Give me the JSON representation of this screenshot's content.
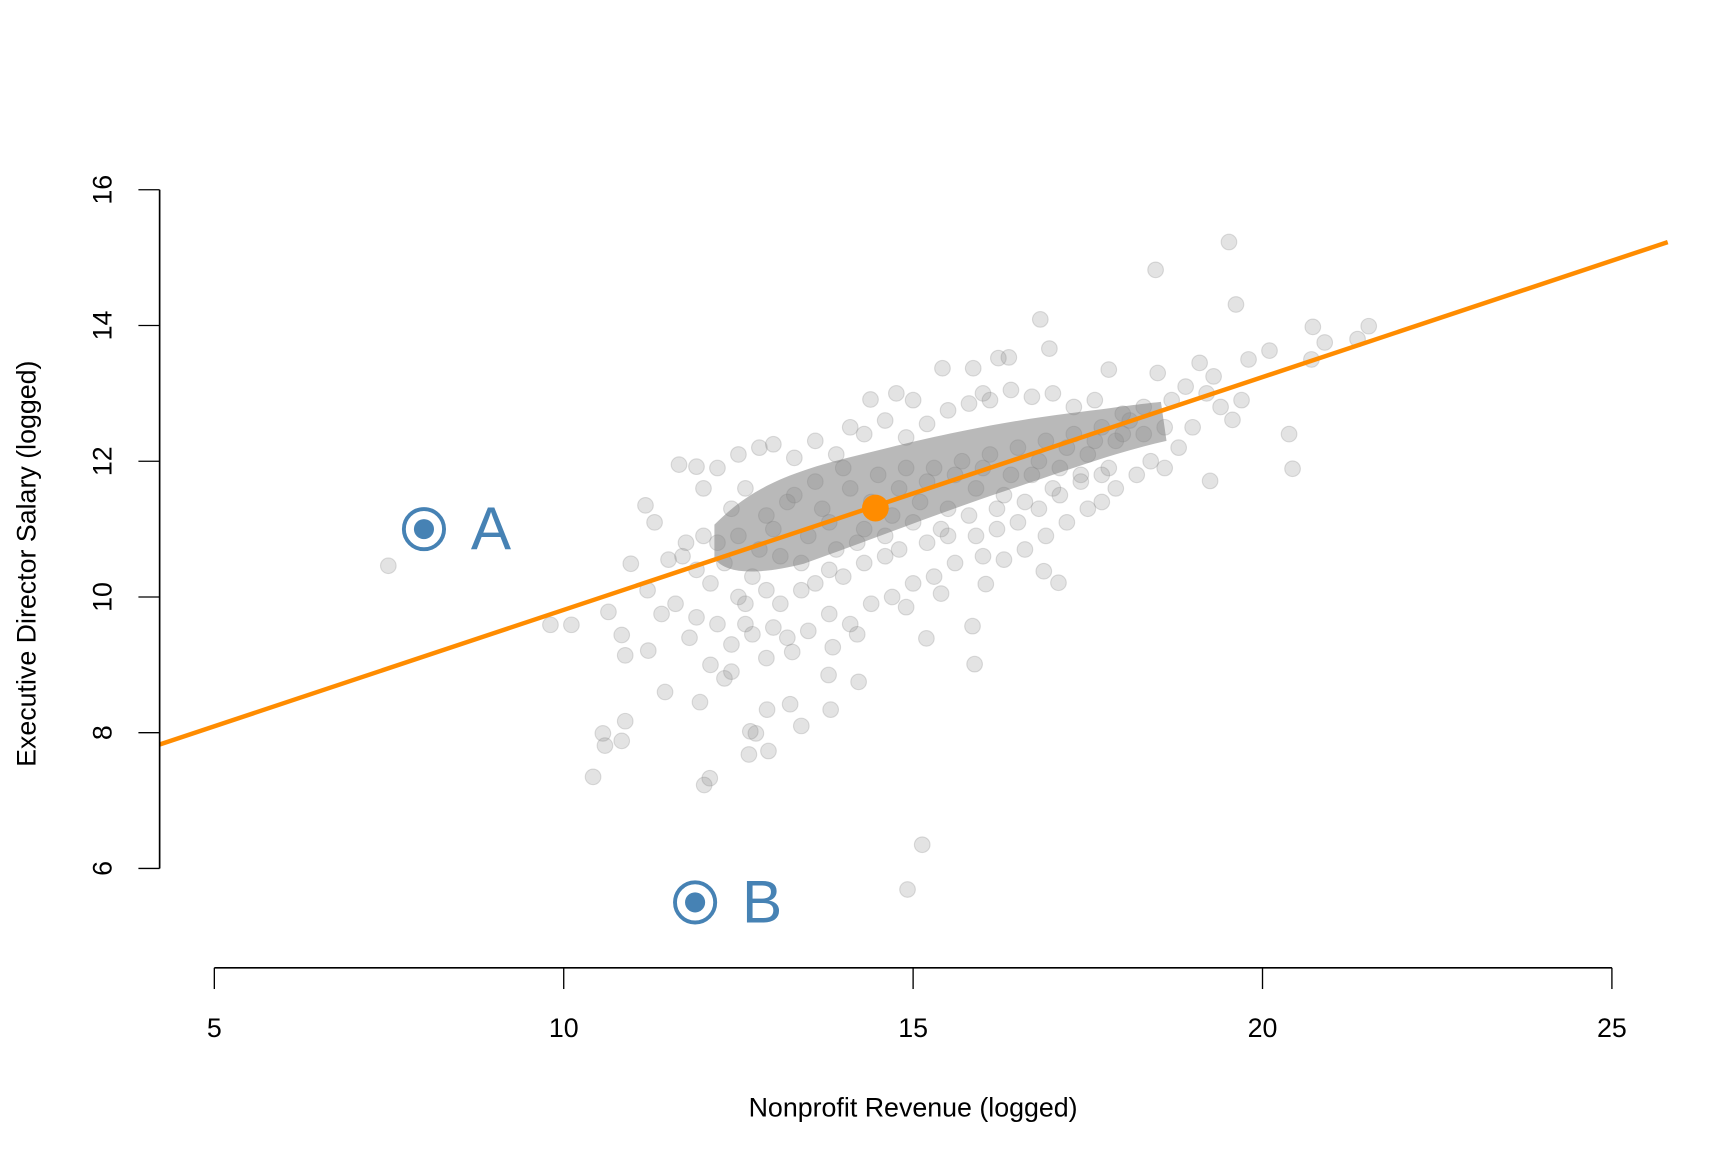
{
  "chart_data": {
    "type": "scatter",
    "title": "",
    "xlabel": "Nonprofit Revenue (logged)",
    "ylabel": "Executive Director Salary (logged)",
    "xlim": [
      5,
      25
    ],
    "ylim": [
      6,
      16
    ],
    "xticks": [
      "5",
      "10",
      "15",
      "20",
      "25"
    ],
    "yticks": [
      "6",
      "8",
      "10",
      "12",
      "14",
      "16"
    ],
    "grid": false,
    "colors": {
      "points": "#808080",
      "line": "#FF8C00",
      "highlight": "#4682B4"
    },
    "regression": {
      "intercept": 6.38,
      "slope": 0.343
    },
    "mean_point": {
      "x": 14.46,
      "y": 11.31
    },
    "highlighted": [
      {
        "label": "A",
        "x": 8.0,
        "y": 11.0
      },
      {
        "label": "B",
        "x": 11.88,
        "y": 5.5
      }
    ],
    "points": [
      [
        7.49,
        10.46
      ],
      [
        9.81,
        9.59
      ],
      [
        10.11,
        9.59
      ],
      [
        10.42,
        7.35
      ],
      [
        10.56,
        7.99
      ],
      [
        10.59,
        7.81
      ],
      [
        10.83,
        7.88
      ],
      [
        10.88,
        8.17
      ],
      [
        12.01,
        7.23
      ],
      [
        12.09,
        7.33
      ],
      [
        11.95,
        8.45
      ],
      [
        11.45,
        8.6
      ],
      [
        12.65,
        7.68
      ],
      [
        12.93,
        7.73
      ],
      [
        12.67,
        8.02
      ],
      [
        12.75,
        7.99
      ],
      [
        12.91,
        8.34
      ],
      [
        13.24,
        8.42
      ],
      [
        13.4,
        8.1
      ],
      [
        13.82,
        8.34
      ],
      [
        14.22,
        8.75
      ],
      [
        15.13,
        6.35
      ],
      [
        14.92,
        5.69
      ],
      [
        15.88,
        9.01
      ],
      [
        15.85,
        9.57
      ],
      [
        15.19,
        9.39
      ],
      [
        19.52,
        15.23
      ],
      [
        18.47,
        14.82
      ],
      [
        19.62,
        14.31
      ],
      [
        16.82,
        14.09
      ],
      [
        16.95,
        13.66
      ],
      [
        21.52,
        13.99
      ],
      [
        20.72,
        13.98
      ],
      [
        21.36,
        13.8
      ],
      [
        20.89,
        13.75
      ],
      [
        20.1,
        13.63
      ],
      [
        19.57,
        12.61
      ],
      [
        20.38,
        12.4
      ],
      [
        20.43,
        11.89
      ],
      [
        19.25,
        11.71
      ],
      [
        17.08,
        10.21
      ],
      [
        16.87,
        10.38
      ],
      [
        16.04,
        10.19
      ],
      [
        16.37,
        13.53
      ],
      [
        16.22,
        13.52
      ],
      [
        15.42,
        13.37
      ],
      [
        15.86,
        13.37
      ],
      [
        14.76,
        13.0
      ],
      [
        14.39,
        12.91
      ],
      [
        11.65,
        11.95
      ],
      [
        11.9,
        11.92
      ],
      [
        11.17,
        11.35
      ],
      [
        10.96,
        10.49
      ],
      [
        10.64,
        9.78
      ],
      [
        10.83,
        9.44
      ],
      [
        10.88,
        9.14
      ],
      [
        11.21,
        9.21
      ],
      [
        13.79,
        8.85
      ],
      [
        13.27,
        9.19
      ],
      [
        13.85,
        9.26
      ],
      [
        11.3,
        11.1
      ],
      [
        11.5,
        10.55
      ],
      [
        11.2,
        10.1
      ],
      [
        11.6,
        9.9
      ],
      [
        11.8,
        9.4
      ],
      [
        11.4,
        9.75
      ],
      [
        11.75,
        10.8
      ],
      [
        12.0,
        11.6
      ],
      [
        12.1,
        9.0
      ],
      [
        12.3,
        8.8
      ],
      [
        12.4,
        9.3
      ],
      [
        12.6,
        9.6
      ],
      [
        12.2,
        11.9
      ],
      [
        12.5,
        12.1
      ],
      [
        12.8,
        12.2
      ],
      [
        13.0,
        12.25
      ],
      [
        13.3,
        12.05
      ],
      [
        13.6,
        12.3
      ],
      [
        13.9,
        12.1
      ],
      [
        14.1,
        12.5
      ],
      [
        14.3,
        12.4
      ],
      [
        14.6,
        12.6
      ],
      [
        14.9,
        12.35
      ],
      [
        15.2,
        12.55
      ],
      [
        15.5,
        12.75
      ],
      [
        15.8,
        12.85
      ],
      [
        16.1,
        12.9
      ],
      [
        16.4,
        13.05
      ],
      [
        16.7,
        12.95
      ],
      [
        17.0,
        13.0
      ],
      [
        17.3,
        12.8
      ],
      [
        17.6,
        12.9
      ],
      [
        17.8,
        13.35
      ],
      [
        18.0,
        12.7
      ],
      [
        18.3,
        12.8
      ],
      [
        18.5,
        13.3
      ],
      [
        18.7,
        12.9
      ],
      [
        18.9,
        13.1
      ],
      [
        19.1,
        13.45
      ],
      [
        19.3,
        13.25
      ],
      [
        19.8,
        13.5
      ],
      [
        18.8,
        12.2
      ],
      [
        18.6,
        11.9
      ],
      [
        18.2,
        11.8
      ],
      [
        17.9,
        11.6
      ],
      [
        17.7,
        11.4
      ],
      [
        17.5,
        11.3
      ],
      [
        17.2,
        11.1
      ],
      [
        16.9,
        10.9
      ],
      [
        16.6,
        10.7
      ],
      [
        16.3,
        10.55
      ],
      [
        16.0,
        10.6
      ],
      [
        15.6,
        10.5
      ],
      [
        15.3,
        10.3
      ],
      [
        15.0,
        10.2
      ],
      [
        14.7,
        10.0
      ],
      [
        14.4,
        9.9
      ],
      [
        14.1,
        9.6
      ],
      [
        13.8,
        9.75
      ],
      [
        13.5,
        9.5
      ],
      [
        13.2,
        9.4
      ],
      [
        12.9,
        9.1
      ],
      [
        12.7,
        9.45
      ],
      [
        12.4,
        8.9
      ],
      [
        15.4,
        10.05
      ],
      [
        14.9,
        9.85
      ],
      [
        14.2,
        9.45
      ],
      [
        13.0,
        9.55
      ],
      [
        12.3,
        10.5
      ],
      [
        12.5,
        10.9
      ],
      [
        12.7,
        10.3
      ],
      [
        12.9,
        11.2
      ],
      [
        13.1,
        10.6
      ],
      [
        13.3,
        11.5
      ],
      [
        13.5,
        10.9
      ],
      [
        13.7,
        11.3
      ],
      [
        13.9,
        10.7
      ],
      [
        14.1,
        11.6
      ],
      [
        14.3,
        11.0
      ],
      [
        14.5,
        11.8
      ],
      [
        14.7,
        11.2
      ],
      [
        14.9,
        11.9
      ],
      [
        15.1,
        11.4
      ],
      [
        15.3,
        11.9
      ],
      [
        15.5,
        11.3
      ],
      [
        15.7,
        12.0
      ],
      [
        15.9,
        11.6
      ],
      [
        16.1,
        12.1
      ],
      [
        16.3,
        11.5
      ],
      [
        16.5,
        12.2
      ],
      [
        16.7,
        11.8
      ],
      [
        16.9,
        12.3
      ],
      [
        17.1,
        11.9
      ],
      [
        17.3,
        12.4
      ],
      [
        17.5,
        12.1
      ],
      [
        17.7,
        12.5
      ],
      [
        17.9,
        12.3
      ],
      [
        18.1,
        12.6
      ],
      [
        18.3,
        12.4
      ],
      [
        12.4,
        11.3
      ],
      [
        12.6,
        11.6
      ],
      [
        12.8,
        10.7
      ],
      [
        13.0,
        11.0
      ],
      [
        13.2,
        11.4
      ],
      [
        13.4,
        10.5
      ],
      [
        13.6,
        11.7
      ],
      [
        13.8,
        11.1
      ],
      [
        14.0,
        11.9
      ],
      [
        14.2,
        10.8
      ],
      [
        14.4,
        11.4
      ],
      [
        14.6,
        10.9
      ],
      [
        14.8,
        11.6
      ],
      [
        15.0,
        11.1
      ],
      [
        15.2,
        11.7
      ],
      [
        15.4,
        11.0
      ],
      [
        15.6,
        11.8
      ],
      [
        15.8,
        11.2
      ],
      [
        16.0,
        11.9
      ],
      [
        16.2,
        11.3
      ],
      [
        16.4,
        11.8
      ],
      [
        16.6,
        11.4
      ],
      [
        16.8,
        12.0
      ],
      [
        17.0,
        11.6
      ],
      [
        17.2,
        12.2
      ],
      [
        17.4,
        11.8
      ],
      [
        17.6,
        12.3
      ],
      [
        17.8,
        11.9
      ],
      [
        18.0,
        12.4
      ],
      [
        12.2,
        10.8
      ],
      [
        12.1,
        10.2
      ],
      [
        12.0,
        10.9
      ],
      [
        11.9,
        10.4
      ],
      [
        11.7,
        10.6
      ],
      [
        11.9,
        9.7
      ],
      [
        12.2,
        9.6
      ],
      [
        12.5,
        10.0
      ],
      [
        12.6,
        9.9
      ],
      [
        12.9,
        10.1
      ],
      [
        13.1,
        9.9
      ],
      [
        13.4,
        10.1
      ],
      [
        13.6,
        10.2
      ],
      [
        13.8,
        10.4
      ],
      [
        14.0,
        10.3
      ],
      [
        14.3,
        10.5
      ],
      [
        14.6,
        10.6
      ],
      [
        14.8,
        10.7
      ],
      [
        15.2,
        10.8
      ],
      [
        15.5,
        10.9
      ],
      [
        15.9,
        10.9
      ],
      [
        16.2,
        11.0
      ],
      [
        16.5,
        11.1
      ],
      [
        16.8,
        11.3
      ],
      [
        17.1,
        11.5
      ],
      [
        17.4,
        11.7
      ],
      [
        17.7,
        11.8
      ],
      [
        19.0,
        12.5
      ],
      [
        19.4,
        12.8
      ],
      [
        19.7,
        12.9
      ],
      [
        20.7,
        13.5
      ],
      [
        19.2,
        13.0
      ],
      [
        18.4,
        12.0
      ],
      [
        18.6,
        12.5
      ],
      [
        16.0,
        13.0
      ],
      [
        15.0,
        12.9
      ]
    ]
  }
}
